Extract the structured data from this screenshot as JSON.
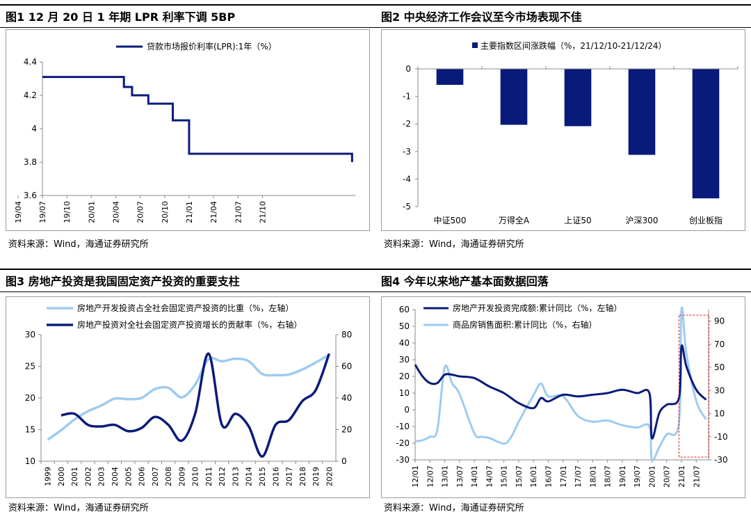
{
  "source_text": "资料来源：Wind，海通证券研究所",
  "panels": {
    "fig1": {
      "title": "图1   12 月 20 日 1 年期 LPR 利率下调 5BP"
    },
    "fig2": {
      "title": "图2   中央经济工作会议至今市场表现不佳"
    },
    "fig3": {
      "title": "图3   房地产投资是我国固定资产投资的重要支柱"
    },
    "fig4": {
      "title": "图4   今年以来地产基本面数据回落"
    }
  },
  "colors": {
    "dark": "#0a1a7a",
    "light": "#9dcbf0",
    "axis": "#888888",
    "highlight": "#e02020"
  },
  "chart_data": [
    {
      "id": "fig1",
      "type": "line",
      "series": [
        {
          "name": "贷款市场报价利率(LPR):1年（%）",
          "points": [
            [
              "2018-10",
              4.31
            ],
            [
              "2019-08",
              4.31
            ],
            [
              "2019-08",
              4.25
            ],
            [
              "2019-09",
              4.25
            ],
            [
              "2019-09",
              4.2
            ],
            [
              "2019-11",
              4.2
            ],
            [
              "2019-11",
              4.15
            ],
            [
              "2020-02",
              4.15
            ],
            [
              "2020-02",
              4.05
            ],
            [
              "2020-04",
              4.05
            ],
            [
              "2020-04",
              3.85
            ],
            [
              "2021-12",
              3.85
            ],
            [
              "2021-12",
              3.8
            ]
          ]
        }
      ],
      "x_ticks": [
        "18/10",
        "19/01",
        "19/04",
        "19/07",
        "19/10",
        "20/01",
        "20/04",
        "20/07",
        "20/10",
        "21/01",
        "21/04",
        "21/07",
        "21/10"
      ],
      "ylim": [
        3.6,
        4.4
      ],
      "y_ticks": [
        "3.6",
        "3.8",
        "4",
        "4.2",
        "4.4"
      ],
      "legend": "top-center"
    },
    {
      "id": "fig2",
      "type": "bar",
      "series": [
        {
          "name": "主要指数区间涨跌幅（%，21/12/10-21/12/24）",
          "values": [
            -0.58,
            -2.03,
            -2.08,
            -3.12,
            -4.7
          ]
        }
      ],
      "categories": [
        "中证500",
        "万得全A",
        "上证50",
        "沪深300",
        "创业板指"
      ],
      "ylim": [
        -5,
        0
      ],
      "y_ticks": [
        "0",
        "-1",
        "-2",
        "-3",
        "-4",
        "-5"
      ],
      "legend": "top-center"
    },
    {
      "id": "fig3",
      "type": "line",
      "x": [
        "1999",
        "2000",
        "2001",
        "2002",
        "2003",
        "2004",
        "2005",
        "2006",
        "2007",
        "2008",
        "2009",
        "2010",
        "2011",
        "2012",
        "2013",
        "2014",
        "2015",
        "2016",
        "2017",
        "2018",
        "2019",
        "2020"
      ],
      "series": [
        {
          "name": "房地产开发投资占全社会固定资产投资的比重（%，左轴）",
          "axis": "left",
          "values": [
            13.4,
            14.9,
            16.6,
            17.9,
            18.8,
            19.9,
            19.8,
            20.0,
            21.4,
            21.6,
            20.1,
            22.1,
            26.1,
            25.8,
            26.2,
            25.8,
            23.8,
            23.6,
            23.7,
            24.5,
            25.6,
            26.8
          ]
        },
        {
          "name": "房地产投资对全社会固定资产投资增长的贡献率（%，右轴）",
          "axis": "right",
          "x": [
            "2000",
            "2001",
            "2002",
            "2003",
            "2004",
            "2005",
            "2006",
            "2007",
            "2008",
            "2009",
            "2010",
            "2011",
            "2012",
            "2013",
            "2014",
            "2015",
            "2016",
            "2017",
            "2018",
            "2019",
            "2020"
          ],
          "values": [
            29,
            30,
            23,
            22,
            23,
            19,
            21,
            28,
            23,
            13,
            30,
            68,
            23,
            30,
            22,
            3,
            23,
            26,
            38,
            45,
            68
          ]
        }
      ],
      "ylim_left": [
        10,
        30
      ],
      "y_ticks_left": [
        "10",
        "15",
        "20",
        "25",
        "30"
      ],
      "ylim_right": [
        0,
        80
      ],
      "y_ticks_right": [
        "0",
        "20",
        "40",
        "60",
        "80"
      ],
      "legend": "top-left"
    },
    {
      "id": "fig4",
      "type": "line",
      "x_ticks": [
        "12/01",
        "12/07",
        "13/01",
        "13/07",
        "14/01",
        "14/07",
        "15/01",
        "15/07",
        "16/01",
        "16/07",
        "17/01",
        "17/07",
        "18/01",
        "18/07",
        "19/01",
        "19/07",
        "20/01",
        "20/07",
        "21/01",
        "21/07"
      ],
      "series": [
        {
          "name": "房地产开发投资完成额:累计同比（%，左轴）",
          "axis": "left",
          "points": [
            [
              "12/01",
              27
            ],
            [
              "12/04",
              20
            ],
            [
              "12/07",
              16
            ],
            [
              "12/10",
              16
            ],
            [
              "13/01",
              21
            ],
            [
              "13/04",
              21
            ],
            [
              "13/07",
              20
            ],
            [
              "14/01",
              19
            ],
            [
              "14/07",
              14
            ],
            [
              "15/01",
              10
            ],
            [
              "15/07",
              4
            ],
            [
              "16/01",
              1
            ],
            [
              "16/04",
              7
            ],
            [
              "16/07",
              5
            ],
            [
              "17/01",
              9
            ],
            [
              "17/07",
              8
            ],
            [
              "18/01",
              9
            ],
            [
              "18/07",
              10
            ],
            [
              "19/01",
              12
            ],
            [
              "19/07",
              10
            ],
            [
              "19/12",
              10
            ],
            [
              "20/01",
              -17
            ],
            [
              "20/04",
              -2
            ],
            [
              "20/07",
              3
            ],
            [
              "20/12",
              7
            ],
            [
              "21/01",
              38
            ],
            [
              "21/03",
              26
            ],
            [
              "21/07",
              12
            ],
            [
              "21/11",
              6
            ]
          ]
        },
        {
          "name": "商品房销售面积:累计同比（%，右轴）",
          "axis": "right",
          "points": [
            [
              "12/01",
              -14
            ],
            [
              "12/04",
              -13
            ],
            [
              "12/07",
              -10
            ],
            [
              "12/10",
              -4
            ],
            [
              "13/01",
              50
            ],
            [
              "13/04",
              36
            ],
            [
              "13/07",
              27
            ],
            [
              "14/01",
              -7
            ],
            [
              "14/04",
              -10
            ],
            [
              "14/07",
              -11
            ],
            [
              "15/01",
              -16
            ],
            [
              "15/04",
              -10
            ],
            [
              "15/07",
              3
            ],
            [
              "16/01",
              26
            ],
            [
              "16/04",
              36
            ],
            [
              "16/07",
              25
            ],
            [
              "17/01",
              25
            ],
            [
              "17/07",
              8
            ],
            [
              "18/01",
              3
            ],
            [
              "18/07",
              4
            ],
            [
              "19/01",
              0
            ],
            [
              "19/07",
              -2
            ],
            [
              "19/12",
              -1
            ],
            [
              "20/01",
              -40
            ],
            [
              "20/04",
              -19
            ],
            [
              "20/07",
              -8
            ],
            [
              "20/12",
              2
            ],
            [
              "21/01",
              104
            ],
            [
              "21/03",
              62
            ],
            [
              "21/07",
              21
            ],
            [
              "21/11",
              5
            ]
          ]
        }
      ],
      "ylim_left": [
        -30,
        60
      ],
      "y_ticks_left": [
        "-30",
        "-20",
        "-10",
        "0",
        "10",
        "20",
        "30",
        "40",
        "50",
        "60"
      ],
      "ylim_right": [
        -30,
        100
      ],
      "y_ticks_right": [
        "-30",
        "-10",
        "10",
        "30",
        "50",
        "70",
        "90"
      ],
      "highlight": [
        "20/12",
        "21/11"
      ],
      "legend": "top-left"
    }
  ]
}
